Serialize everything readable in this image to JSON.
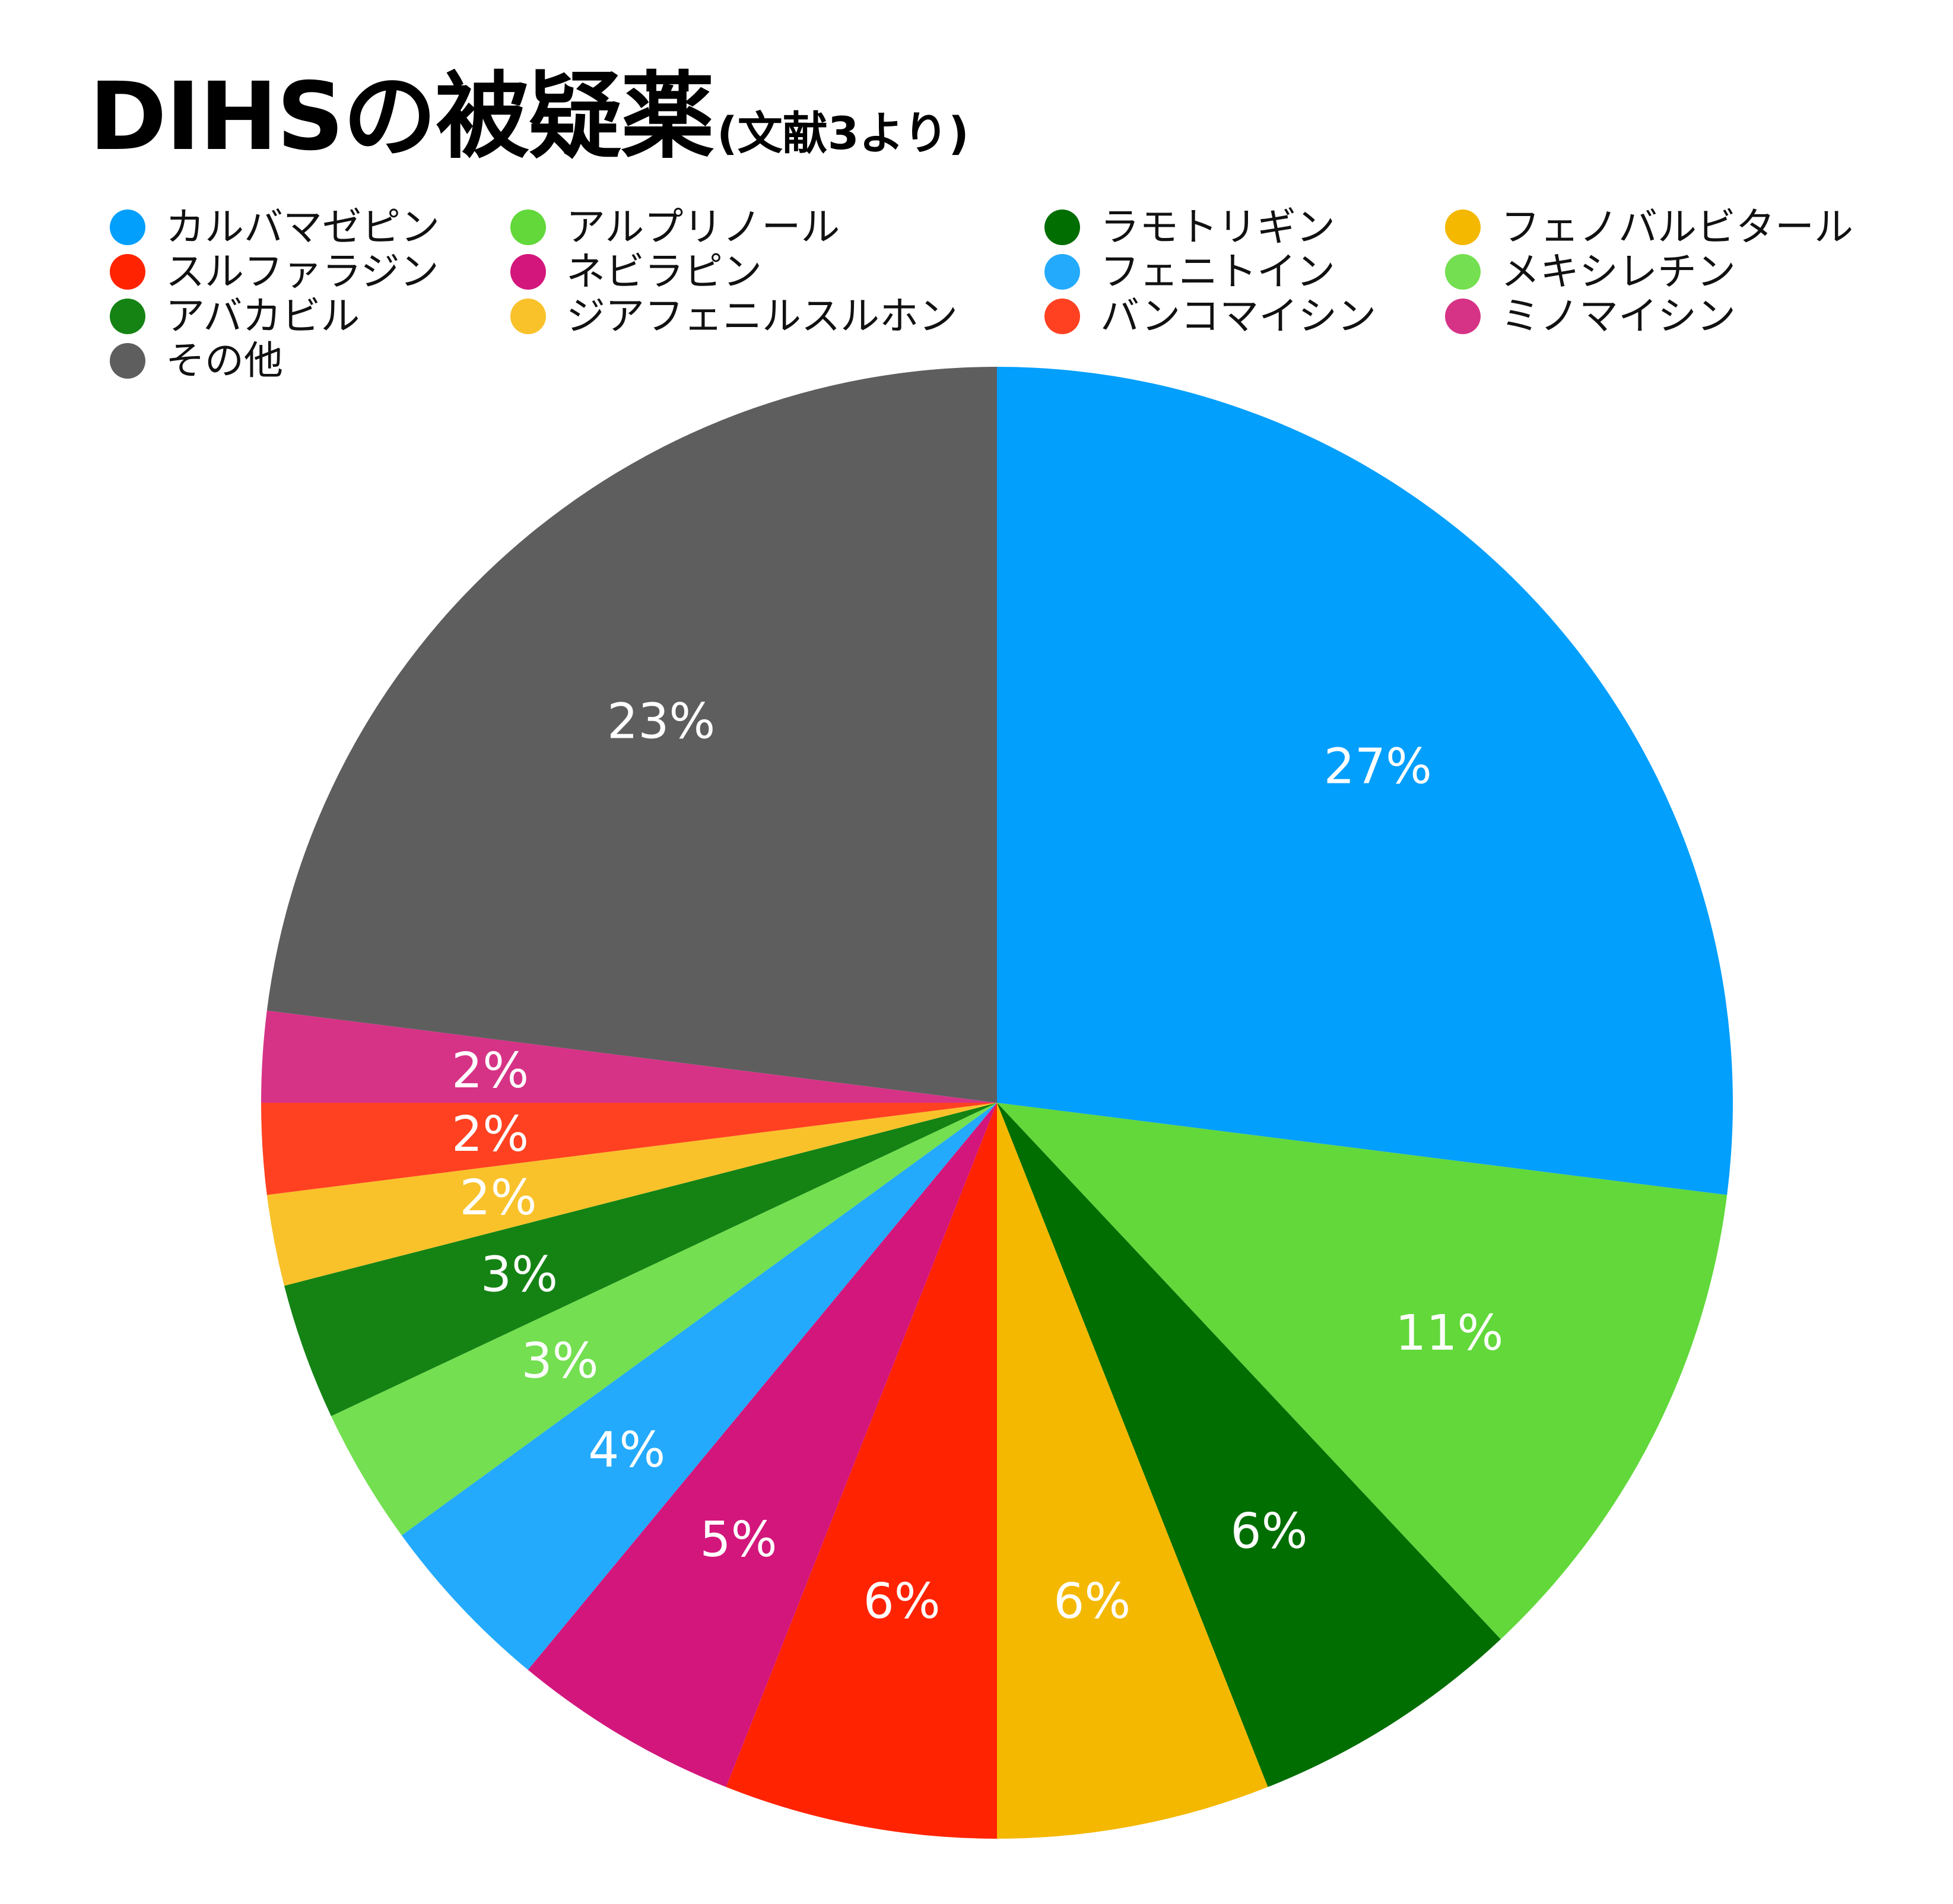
{
  "chart_data": {
    "type": "pie",
    "title": "DIHSの被疑薬",
    "subtitle": "(文献3より)",
    "legend_placement": "top",
    "slices": [
      {
        "label": "カルバマゼピン",
        "value": 27,
        "value_label": "27%",
        "color": "#039FFC"
      },
      {
        "label": "アルプリノール",
        "value": 11,
        "value_label": "11%",
        "color": "#62D83B"
      },
      {
        "label": "ラモトリギン",
        "value": 6,
        "value_label": "6%",
        "color": "#006E00"
      },
      {
        "label": "フェノバルビタール",
        "value": 6,
        "value_label": "6%",
        "color": "#F4B800"
      },
      {
        "label": "スルファラジン",
        "value": 6,
        "value_label": "6%",
        "color": "#FF2301"
      },
      {
        "label": "ネビラピン",
        "value": 5,
        "value_label": "5%",
        "color": "#D3167C"
      },
      {
        "label": "フェニトイン",
        "value": 4,
        "value_label": "4%",
        "color": "#24AAFC"
      },
      {
        "label": "メキシレチン",
        "value": 3,
        "value_label": "3%",
        "color": "#74DF50"
      },
      {
        "label": "アバカビル",
        "value": 3,
        "value_label": "3%",
        "color": "#148314"
      },
      {
        "label": "ジアフェニルスルホン",
        "value": 2,
        "value_label": "2%",
        "color": "#F9C22B"
      },
      {
        "label": "バンコマイシン",
        "value": 2,
        "value_label": "2%",
        "color": "#FF4121"
      },
      {
        "label": "ミノマイシン",
        "value": 2,
        "value_label": "2%",
        "color": "#D63386"
      },
      {
        "label": "その他",
        "value": 23,
        "value_label": "23%",
        "color": "#5E5E5E"
      }
    ],
    "legend_order": [
      "カルバマゼピン",
      "アルプリノール",
      "ラモトリギン",
      "フェノバルビタール",
      "スルファラジン",
      "ネビラピン",
      "フェニトイン",
      "メキシレチン",
      "アバカビル",
      "ジアフェニルスルホン",
      "バンコマイシン",
      "ミノマイシン",
      "その他"
    ]
  }
}
